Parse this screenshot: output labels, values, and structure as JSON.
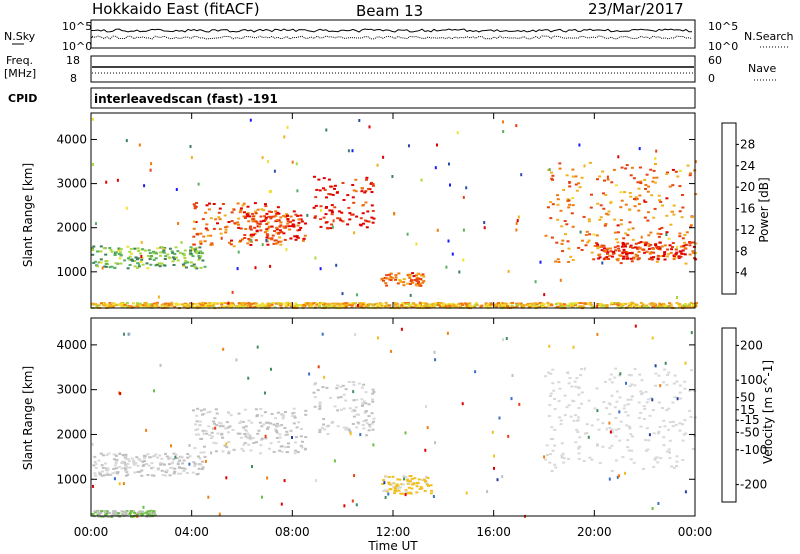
{
  "header": {
    "station": "Hokkaido East (fitACF)",
    "beam": "Beam 13",
    "date": "23/Mar/2017"
  },
  "top_panels": {
    "nsky_label": "N.Sky",
    "nsky_ticks": [
      "10^5",
      "10^0"
    ],
    "nsearch_label": "N.Search",
    "nsearch_ticks": [
      "10^5",
      "10^0"
    ],
    "freq_label": "Freq.",
    "freq_unit": "[MHz]",
    "freq_ticks": [
      "18",
      "8"
    ],
    "nave_label": "Nave",
    "nave_ticks": [
      "60",
      "0"
    ],
    "cpid_label": "CPID",
    "cpid_text": "interleavedscan (fast) -191"
  },
  "colors": {
    "power_scale": [
      "#1a1aff",
      "#2a4fa8",
      "#3f7f5f",
      "#58b060",
      "#a8d840",
      "#f0e030",
      "#f0b020",
      "#f07a10",
      "#e84010",
      "#e00000"
    ],
    "velocity_scale": [
      "#2a3fa0",
      "#3a6fc8",
      "#3f8f5f",
      "#6cc040",
      "#bfbfbf",
      "#d8d8d8",
      "#f0c020",
      "#f08010",
      "#e84010",
      "#e00000"
    ]
  },
  "chart_data": [
    {
      "type": "heatmap",
      "title": "",
      "xlabel": "Time UT",
      "ylabel": "Slant Range [km]",
      "x_ticks": [
        "00:00",
        "04:00",
        "08:00",
        "12:00",
        "16:00",
        "20:00",
        "00:00"
      ],
      "y_ticks": [
        1000,
        2000,
        3000,
        4000
      ],
      "xlim": [
        0,
        24
      ],
      "ylim": [
        180,
        4600
      ],
      "colorbar_label": "Power [dB]",
      "colorbar_ticks": [
        4,
        8,
        12,
        16,
        20,
        24,
        28
      ],
      "colorbar_range": [
        0,
        32
      ],
      "features": [
        {
          "t": [
            0.0,
            4.5
          ],
          "r": [
            1100,
            1600
          ],
          "level": 12
        },
        {
          "t": [
            4.0,
            7.5
          ],
          "r": [
            1600,
            2600
          ],
          "level": 26
        },
        {
          "t": [
            6.0,
            8.5
          ],
          "r": [
            1700,
            2400
          ],
          "level": 28
        },
        {
          "t": [
            8.8,
            11.2
          ],
          "r": [
            2000,
            3200
          ],
          "level": 30
        },
        {
          "t": [
            11.5,
            13.2
          ],
          "r": [
            700,
            1000
          ],
          "level": 24
        },
        {
          "t": [
            18.0,
            24.0
          ],
          "r": [
            1200,
            3500
          ],
          "level": 24
        },
        {
          "t": [
            20.0,
            24.0
          ],
          "r": [
            1300,
            1700
          ],
          "level": 28
        },
        {
          "t": [
            0.0,
            24.0
          ],
          "r": [
            200,
            320
          ],
          "level": 20
        }
      ]
    },
    {
      "type": "heatmap",
      "title": "",
      "xlabel": "Time UT",
      "ylabel": "Slant Range [km]",
      "x_ticks": [
        "00:00",
        "04:00",
        "08:00",
        "12:00",
        "16:00",
        "20:00",
        "00:00"
      ],
      "y_ticks": [
        1000,
        2000,
        3000,
        4000
      ],
      "xlim": [
        0,
        24
      ],
      "ylim": [
        180,
        4600
      ],
      "colorbar_label": "Velocity [m s^-1]",
      "colorbar_ticks": [
        200,
        100,
        50,
        15,
        -15,
        -50,
        -100,
        -200
      ],
      "colorbar_range": [
        -250,
        250
      ],
      "features": [
        {
          "t": [
            0.0,
            4.5
          ],
          "r": [
            1100,
            1600
          ],
          "level": 0
        },
        {
          "t": [
            4.0,
            8.5
          ],
          "r": [
            1600,
            2600
          ],
          "level": 0
        },
        {
          "t": [
            8.8,
            11.2
          ],
          "r": [
            2000,
            3200
          ],
          "level": 0
        },
        {
          "t": [
            11.5,
            13.5
          ],
          "r": [
            700,
            1100
          ],
          "level": 60
        },
        {
          "t": [
            18.0,
            24.0
          ],
          "r": [
            1200,
            3500
          ],
          "level": 20
        },
        {
          "t": [
            0.0,
            2.5
          ],
          "r": [
            180,
            320
          ],
          "level": -50
        }
      ]
    }
  ]
}
